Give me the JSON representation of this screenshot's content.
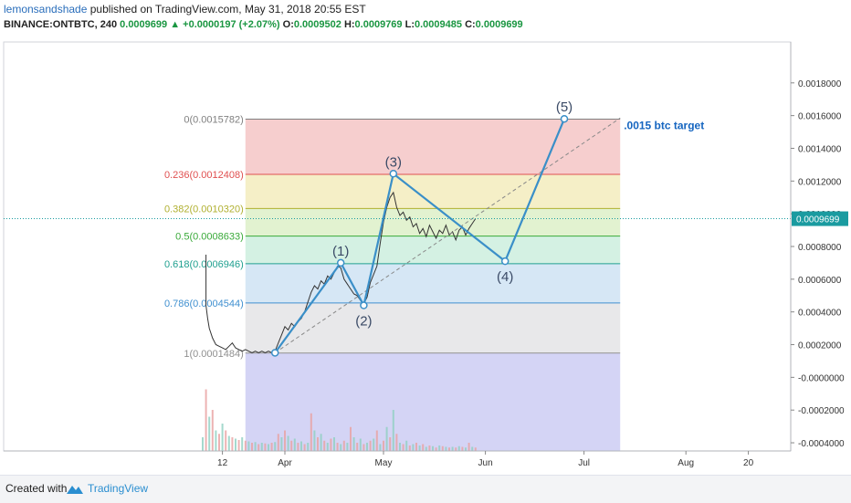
{
  "header": {
    "user": "lemonsandshade",
    "published": "published on TradingView.com, May 31, 2018 20:55 EST",
    "symbol": "BINANCE:ONTBTC, 240",
    "last": "0.0009699",
    "change": "+0.0000197 (+2.07%)",
    "o_label": "O:",
    "o": "0.0009502",
    "h_label": "H:",
    "h": "0.0009769",
    "l_label": "L:",
    "l": "0.0009485",
    "c_label": "C:",
    "c": "0.0009699"
  },
  "footer": {
    "created": "Created with",
    "brand": "TradingView"
  },
  "colors": {
    "wave": "#3a8fc8",
    "price_tag": "#1a9ba0",
    "target": "#1565c0"
  },
  "chart_data": {
    "type": "line",
    "ylim": [
      -0.00045,
      0.00205
    ],
    "y_ticks": [
      "0.0018000",
      "0.0016000",
      "0.0014000",
      "0.0012000",
      "0.0010000",
      "0.0008000",
      "0.0006000",
      "0.0004000",
      "0.0002000",
      "-0.0000000",
      "-0.0002000",
      "-0.0004000"
    ],
    "y_tick_values": [
      0.0018,
      0.0016,
      0.0014,
      0.0012,
      0.001,
      0.0008,
      0.0006,
      0.0004,
      0.0002,
      0.0,
      -0.0002,
      -0.0004
    ],
    "x_ticks": [
      "12",
      "Apr",
      "May",
      "Jun",
      "Jul",
      "Aug",
      "20"
    ],
    "x_tick_days": [
      -19,
      0,
      30,
      61,
      91,
      122,
      141
    ],
    "last_price": 0.0009699,
    "last_price_label": "0.0009699",
    "fib_levels": [
      {
        "ratio": 0,
        "label": "0(0.0015782)",
        "value": 0.0015782,
        "color": "#808080",
        "fill": "#f4c6c6"
      },
      {
        "ratio": 0.236,
        "label": "0.236(0.0012408)",
        "value": 0.0012408,
        "color": "#e05050",
        "fill": "#f3ecbd"
      },
      {
        "ratio": 0.382,
        "label": "0.382(0.0010320)",
        "value": 0.001032,
        "color": "#b0b030",
        "fill": "#ddf0c8"
      },
      {
        "ratio": 0.5,
        "label": "0.5(0.0008633)",
        "value": 0.0008633,
        "color": "#3aaa3a",
        "fill": "#cdeede"
      },
      {
        "ratio": 0.618,
        "label": "0.618(0.0006946)",
        "value": 0.0006946,
        "color": "#20a090",
        "fill": "#cfe3f3"
      },
      {
        "ratio": 0.786,
        "label": "0.786(0.0004544)",
        "value": 0.0004544,
        "color": "#4090d0",
        "fill": "#e4e4e6"
      },
      {
        "ratio": 1,
        "label": "1(0.0001484)",
        "value": 0.0001484,
        "color": "#909090",
        "fill": "#cccdf3"
      }
    ],
    "fib_box_days": [
      -12,
      102
    ],
    "fib_bottom_value": -0.00045,
    "wave_points": [
      {
        "label": "",
        "day": -3,
        "value": 0.00015
      },
      {
        "label": "(1)",
        "day": 17,
        "value": 0.0007
      },
      {
        "label": "(2)",
        "day": 24,
        "value": 0.00044
      },
      {
        "label": "(3)",
        "day": 33,
        "value": 0.001245
      },
      {
        "label": "(4)",
        "day": 67,
        "value": 0.00071
      },
      {
        "label": "(5)",
        "day": 85,
        "value": 0.00158
      }
    ],
    "target_label": ".0015 btc target",
    "target_line": [
      {
        "day": -3,
        "value": 0.00015
      },
      {
        "day": 102,
        "value": 0.001585
      }
    ],
    "price": [
      [
        -24,
        0.00044
      ],
      [
        -23.5,
        0.00036
      ],
      [
        -23,
        0.0003
      ],
      [
        -22,
        0.00024
      ],
      [
        -21,
        0.0002
      ],
      [
        -20,
        0.00019
      ],
      [
        -19,
        0.00018
      ],
      [
        -18,
        0.00017
      ],
      [
        -17,
        0.00019
      ],
      [
        -16,
        0.00021
      ],
      [
        -15,
        0.00018
      ],
      [
        -14,
        0.00017
      ],
      [
        -13,
        0.00016
      ],
      [
        -12,
        0.00017
      ],
      [
        -11,
        0.00016
      ],
      [
        -10,
        0.00015
      ],
      [
        -9,
        0.00016
      ],
      [
        -8,
        0.00015
      ],
      [
        -7,
        0.00016
      ],
      [
        -6,
        0.00015
      ],
      [
        -5,
        0.00016
      ],
      [
        -4,
        0.00015
      ],
      [
        -3,
        0.00016
      ],
      [
        -2,
        0.00021
      ],
      [
        -1,
        0.00026
      ],
      [
        0,
        0.00031
      ],
      [
        1,
        0.00029
      ],
      [
        2,
        0.00033
      ],
      [
        3,
        0.00031
      ],
      [
        4,
        0.00034
      ],
      [
        5,
        0.00036
      ],
      [
        6,
        0.0004
      ],
      [
        7,
        0.00046
      ],
      [
        8,
        0.00052
      ],
      [
        9,
        0.00056
      ],
      [
        10,
        0.00054
      ],
      [
        11,
        0.00059
      ],
      [
        12,
        0.00057
      ],
      [
        13,
        0.00062
      ],
      [
        14,
        0.0006
      ],
      [
        15,
        0.00064
      ],
      [
        16,
        0.00068
      ],
      [
        17,
        0.00067
      ],
      [
        18,
        0.0006
      ],
      [
        19,
        0.00057
      ],
      [
        20,
        0.00054
      ],
      [
        21,
        0.00051
      ],
      [
        22,
        0.0005
      ],
      [
        23,
        0.00047
      ],
      [
        24,
        0.00045
      ],
      [
        25,
        0.00049
      ],
      [
        26,
        0.00058
      ],
      [
        27,
        0.00063
      ],
      [
        28,
        0.00068
      ],
      [
        29,
        0.00082
      ],
      [
        30,
        0.00095
      ],
      [
        31,
        0.00104
      ],
      [
        32,
        0.0011
      ],
      [
        33,
        0.00113
      ],
      [
        34,
        0.00104
      ],
      [
        35,
        0.00099
      ],
      [
        36,
        0.00101
      ],
      [
        37,
        0.00096
      ],
      [
        38,
        0.00098
      ],
      [
        39,
        0.00092
      ],
      [
        40,
        0.00094
      ],
      [
        41,
        0.00088
      ],
      [
        42,
        0.00091
      ],
      [
        43,
        0.00086
      ],
      [
        44,
        0.00093
      ],
      [
        45,
        0.00089
      ],
      [
        46,
        0.00085
      ],
      [
        47,
        0.0009
      ],
      [
        48,
        0.00088
      ],
      [
        49,
        0.00093
      ],
      [
        50,
        0.00087
      ],
      [
        51,
        0.00089
      ],
      [
        52,
        0.00084
      ],
      [
        53,
        0.0009
      ],
      [
        54,
        0.00092
      ],
      [
        55,
        0.00087
      ],
      [
        56,
        0.00091
      ],
      [
        57,
        0.00094
      ],
      [
        58,
        0.00097
      ]
    ],
    "volume_days": [
      -25,
      -24,
      -23,
      -22,
      -21,
      -20,
      -19,
      -18,
      -17,
      -16,
      -15,
      -14,
      -13,
      -12,
      -11,
      -10,
      -9,
      -8,
      -7,
      -6,
      -5,
      -4,
      -3,
      -2,
      -1,
      0,
      1,
      2,
      3,
      4,
      5,
      6,
      7,
      8,
      9,
      10,
      11,
      12,
      13,
      14,
      15,
      16,
      17,
      18,
      19,
      20,
      21,
      22,
      23,
      24,
      25,
      26,
      27,
      28,
      29,
      30,
      31,
      32,
      33,
      34,
      35,
      36,
      37,
      38,
      39,
      40,
      41,
      42,
      43,
      44,
      45,
      46,
      47,
      48,
      49,
      50,
      51,
      52,
      53,
      54,
      55,
      56,
      57,
      58
    ],
    "volume": [
      0.2,
      0.9,
      0.5,
      0.6,
      0.3,
      0.25,
      0.4,
      0.3,
      0.22,
      0.2,
      0.18,
      0.16,
      0.2,
      0.15,
      0.14,
      0.12,
      0.13,
      0.1,
      0.12,
      0.11,
      0.1,
      0.12,
      0.13,
      0.25,
      0.2,
      0.3,
      0.22,
      0.15,
      0.18,
      0.12,
      0.14,
      0.1,
      0.12,
      0.55,
      0.3,
      0.2,
      0.25,
      0.15,
      0.12,
      0.18,
      0.2,
      0.12,
      0.1,
      0.15,
      0.12,
      0.35,
      0.2,
      0.12,
      0.18,
      0.1,
      0.12,
      0.15,
      0.18,
      0.3,
      0.1,
      0.15,
      0.35,
      0.2,
      0.6,
      0.25,
      0.12,
      0.1,
      0.15,
      0.08,
      0.1,
      0.12,
      0.08,
      0.1,
      0.06,
      0.08,
      0.07,
      0.05,
      0.08,
      0.07,
      0.06,
      0.05,
      0.06,
      0.05,
      0.07,
      0.06,
      0.05,
      0.12,
      0.06,
      0.05
    ]
  }
}
